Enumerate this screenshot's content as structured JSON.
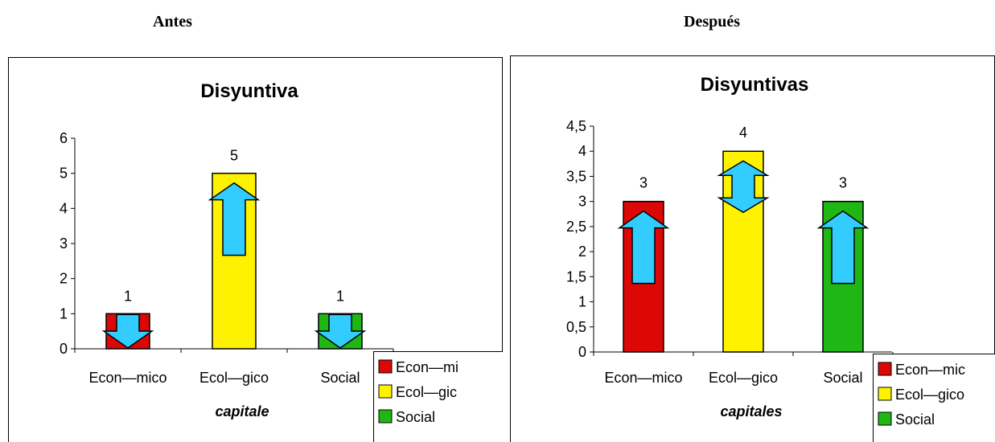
{
  "headings": {
    "left": "Antes",
    "right": "Después"
  },
  "colors": {
    "arrow_fill": "#33CCFF",
    "arrow_stroke": "#000000"
  },
  "chart_data": [
    {
      "type": "bar",
      "title": "Disyuntiva",
      "xlabel": "capitale",
      "ylabel": "",
      "categories": [
        "Econ—mico",
        "Ecol—gico",
        "Social"
      ],
      "values": [
        1,
        5,
        1
      ],
      "data_labels": [
        "1",
        "5",
        "1"
      ],
      "colors": [
        "#DD0806",
        "#FFF200",
        "#1FB714"
      ],
      "ylim": [
        0,
        6
      ],
      "yticks": [
        "0",
        "1",
        "2",
        "3",
        "4",
        "5",
        "6"
      ],
      "legend": [
        "Econ—mi",
        "Ecol—gic",
        "Social"
      ],
      "legend_position": "bottom-right",
      "grid": false,
      "arrows": [
        "down",
        "up",
        "down"
      ]
    },
    {
      "type": "bar",
      "title": "Disyuntivas",
      "xlabel": "capitales",
      "ylabel": "",
      "categories": [
        "Econ—mico",
        "Ecol—gico",
        "Social"
      ],
      "values": [
        3,
        4,
        3
      ],
      "data_labels": [
        "3",
        "4",
        "3"
      ],
      "colors": [
        "#DD0806",
        "#FFF200",
        "#1FB714"
      ],
      "ylim": [
        0,
        4.5
      ],
      "yticks": [
        "0",
        "0,5",
        "1",
        "1,5",
        "2",
        "2,5",
        "3",
        "3,5",
        "4",
        "4,5"
      ],
      "legend": [
        "Econ—mic",
        "Ecol—gico",
        "Social"
      ],
      "legend_position": "bottom-right",
      "grid": false,
      "arrows": [
        "up",
        "both",
        "up"
      ]
    }
  ]
}
